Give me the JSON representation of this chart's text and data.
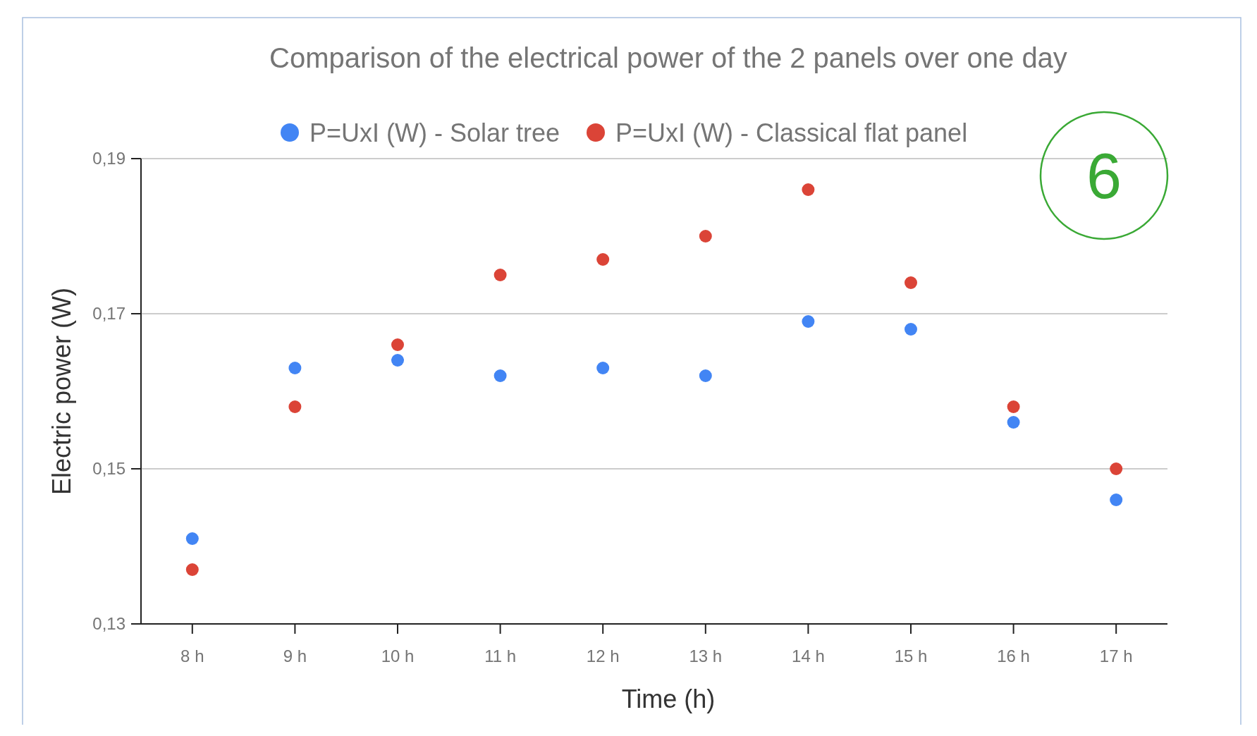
{
  "chart_data": {
    "type": "scatter",
    "title": "Comparison of the electrical power of the 2 panels over one day",
    "xlabel": "Time (h)",
    "ylabel": "Electric power (W)",
    "categories": [
      "8 h",
      "9 h",
      "10 h",
      "11 h",
      "12 h",
      "13 h",
      "14 h",
      "15 h",
      "16 h",
      "17 h"
    ],
    "series": [
      {
        "name": "P=UxI (W) - Solar tree",
        "color": "#4285f4",
        "values": [
          0.141,
          0.163,
          0.164,
          0.162,
          0.163,
          0.162,
          0.169,
          0.168,
          0.156,
          0.146
        ]
      },
      {
        "name": "P=UxI (W) - Classical flat panel",
        "color": "#db4437",
        "values": [
          0.137,
          0.158,
          0.166,
          0.175,
          0.177,
          0.18,
          0.186,
          0.174,
          0.158,
          0.15
        ]
      }
    ],
    "ylim": [
      0.13,
      0.19
    ],
    "yticks": [
      {
        "value": 0.13,
        "label": "0,13"
      },
      {
        "value": 0.15,
        "label": "0,15"
      },
      {
        "value": 0.17,
        "label": "0,17"
      },
      {
        "value": 0.19,
        "label": "0,19"
      }
    ],
    "grid": "y",
    "legend": "top",
    "marker": "circle",
    "annotations": [
      "6"
    ]
  }
}
